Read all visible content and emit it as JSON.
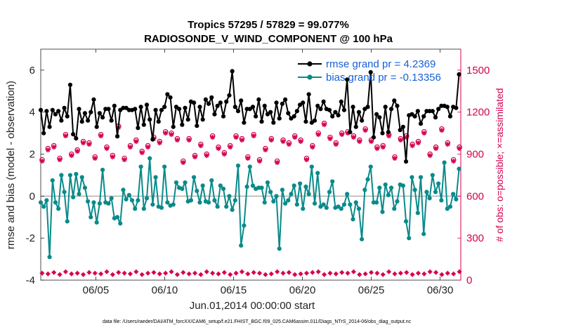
{
  "chart_data": {
    "type": "line",
    "title_line1": "Tropics 57295 / 57829 = 99.077%",
    "title_line2": "RADIOSONDE_V_WIND_COMPONENT @ 100 hPa",
    "xlabel": "Jun.01,2014 00:00:00 start",
    "ylabel_left": "rmse and bias (model - observation)",
    "ylabel_right": "# of obs: o=possible; ×=assimilated",
    "footnote": "data file: /Users/raeder/DAI/ATM_forcXX/CAM6_setup/f.e21.FHIST_BGC.f09_025.CAM6assim.011/Diags_NTrS_2014-06/obs_diag_output.nc",
    "xlim": [
      1,
      31.5
    ],
    "ylim_left": [
      -4,
      7
    ],
    "ylim_right": [
      0,
      1650
    ],
    "x_ticks": [
      5,
      10,
      15,
      20,
      25,
      30
    ],
    "x_tick_labels": [
      "06/05",
      "06/10",
      "06/15",
      "06/20",
      "06/25",
      "06/30"
    ],
    "y_ticks_left": [
      -4,
      -2,
      0,
      2,
      4,
      6
    ],
    "y_tick_labels_left": [
      "-4",
      "-2",
      "0",
      "2",
      "4",
      "6"
    ],
    "y_ticks_right": [
      0,
      300,
      600,
      900,
      1200,
      1500
    ],
    "y_tick_labels_right": [
      "0",
      "300",
      "600",
      "900",
      "1200",
      "1500"
    ],
    "legend_position": "top-right",
    "colors": {
      "rmse": "#000000",
      "bias": "#0a8a8a",
      "obs": "#d6004f",
      "zero_line": "#b0b0b0",
      "legend_text": "#1560d8"
    },
    "series": [
      {
        "name": "rmse grand pr = 4.2369",
        "values": [
          4.1,
          3.0,
          4.05,
          3.3,
          4.1,
          3.9,
          4.05,
          3.6,
          4.2,
          3.8,
          5.3,
          2.95,
          2.75,
          4.15,
          3.55,
          3.95,
          3.6,
          4.0,
          4.6,
          3.3,
          3.95,
          3.75,
          4.15,
          4.15,
          3.6,
          4.3,
          2.85,
          4.1,
          4.2,
          4.2,
          4.1,
          4.1,
          4.15,
          3.25,
          4.25,
          3.4,
          4.35,
          3.65,
          2.7,
          4.1,
          3.55,
          4.1,
          4.25,
          4.85,
          4.7,
          3.3,
          4.25,
          4.15,
          3.4,
          4.2,
          3.65,
          4.5,
          4.45,
          3.35,
          4.25,
          3.65,
          4.6,
          4.4,
          4.7,
          3.9,
          4.3,
          4.45,
          3.8,
          4.5,
          4.8,
          5.95,
          4.25,
          4.05,
          4.55,
          3.5,
          4.15,
          4.15,
          4.25,
          3.8,
          4.6,
          3.55,
          4.3,
          3.9,
          4.0,
          3.5,
          4.45,
          3.7,
          4.4,
          4.6,
          3.95,
          3.7,
          3.8,
          4.05,
          4.35,
          4.45,
          3.55,
          4.85,
          3.5,
          3.6,
          4.3,
          4.15,
          4.5,
          4.15,
          4.1,
          3.8,
          4.0,
          3.85,
          4.5,
          4.1,
          5.55,
          3.05,
          4.25,
          3.3,
          4.0,
          3.6,
          4.15,
          4.25,
          5.9,
          2.8,
          3.9,
          3.75,
          3.0,
          4.25,
          3.05,
          4.15,
          4.55,
          4.3,
          3.15,
          3.3,
          1.65,
          3.85,
          3.9,
          3.8,
          4.05,
          3.45,
          3.8,
          4.05,
          4.05,
          4.05,
          3.75,
          4.15,
          4.3,
          4.3,
          4.25,
          3.8,
          4.25,
          4.2,
          5.8
        ]
      },
      {
        "name": "bias grand pr = -0.13356",
        "values": [
          -0.3,
          -0.5,
          -0.2,
          -2.9,
          0.75,
          -0.3,
          -0.6,
          1.0,
          0.2,
          -1.2,
          1.0,
          -0.05,
          1.05,
          0.1,
          0.9,
          0.4,
          -0.25,
          -1.0,
          -0.3,
          -1.25,
          -0.35,
          1.25,
          -0.3,
          -0.35,
          -0.1,
          -1.05,
          -1.0,
          -1.3,
          0.3,
          -0.15,
          0.05,
          -0.2,
          -0.6,
          -0.2,
          1.4,
          -0.6,
          -0.1,
          1.8,
          -0.4,
          0.9,
          -0.5,
          -0.55,
          1.4,
          -0.3,
          -0.45,
          -0.4,
          0.65,
          0.4,
          0.35,
          0.65,
          -0.25,
          -0.2,
          0.9,
          0.25,
          -0.3,
          0.5,
          -0.25,
          -0.3,
          0.75,
          -0.2,
          -0.5,
          0.5,
          0.35,
          -0.5,
          0.0,
          -0.65,
          -0.2,
          1.45,
          -2.35,
          -1.4,
          0.45,
          1.4,
          0.5,
          0.35,
          0.4,
          0.4,
          -0.3,
          0.65,
          0.2,
          -0.25,
          0.0,
          -2.5,
          0.3,
          -0.35,
          -0.2,
          0.1,
          0.5,
          -0.4,
          0.6,
          -0.6,
          0.45,
          0.1,
          1.4,
          -0.35,
          1.1,
          -0.5,
          -0.4,
          -0.55,
          0.2,
          0.7,
          -0.55,
          -0.5,
          -0.6,
          -0.4,
          0.1,
          -0.4,
          -1.1,
          -0.3,
          -0.6,
          -2.05,
          0.3,
          0.8,
          1.4,
          -0.3,
          -0.3,
          0.4,
          -0.75,
          0.55,
          0.05,
          0.4,
          -0.6,
          -0.25,
          0.55,
          0.5,
          -1.2,
          -2.0,
          0.9,
          0.3,
          -0.8,
          0.9,
          -1.8,
          0.2,
          -0.1,
          1.0,
          0.2,
          0.6,
          -0.2,
          1.6,
          -0.6,
          -0.5,
          0.1,
          -0.15,
          1.3
        ]
      }
    ],
    "obs_possible": [
      860,
      940,
      960,
      870,
      1040,
      900,
      930,
      990,
      980,
      880,
      1040,
      950,
      890,
      1100,
      870,
      960,
      1000,
      920,
      960,
      1020,
      990,
      1060,
      1050,
      1010,
      850,
      1010,
      890,
      970,
      900,
      1030,
      950,
      910,
      960,
      1030,
      1010,
      880,
      1040,
      860,
      940,
      1010,
      850,
      1000,
      980,
      1030,
      1000,
      870,
      960,
      1050,
      1120,
      1020,
      980,
      1050,
      1060,
      1030,
      1000,
      1080,
      1000,
      950,
      960,
      1040,
      880,
      1010,
      1030,
      970,
      990,
      1060,
      900,
      950,
      1080,
      980,
      860,
      950
    ],
    "obs_assimilated": [
      850,
      930,
      950,
      860,
      1030,
      890,
      920,
      980,
      970,
      870,
      1030,
      940,
      880,
      1090,
      860,
      950,
      990,
      910,
      950,
      1010,
      980,
      1050,
      1040,
      1000,
      840,
      1000,
      880,
      960,
      890,
      1020,
      940,
      900,
      950,
      1020,
      1000,
      870,
      1030,
      850,
      930,
      1000,
      840,
      990,
      970,
      1020,
      990,
      860,
      950,
      1040,
      1110,
      1010,
      970,
      1040,
      1050,
      1020,
      990,
      1070,
      990,
      940,
      950,
      1030,
      870,
      1000,
      1020,
      960,
      980,
      1050,
      890,
      940,
      1070,
      970,
      850,
      940
    ],
    "obs_low": [
      50,
      45,
      55,
      40,
      60,
      45,
      50,
      40,
      55,
      50,
      45,
      60,
      40,
      55,
      50,
      45,
      60,
      40,
      50,
      55,
      45,
      50,
      60,
      40,
      55,
      45,
      50,
      40,
      60,
      50,
      45,
      55,
      40,
      50,
      60,
      45,
      55,
      50,
      40,
      45,
      60,
      50,
      55,
      40,
      45,
      50,
      55,
      60,
      40,
      50,
      45,
      55,
      50,
      60,
      40,
      45,
      55,
      50,
      40,
      60,
      45,
      50,
      55,
      40,
      50,
      45,
      60,
      55,
      40,
      50,
      45,
      60
    ]
  }
}
